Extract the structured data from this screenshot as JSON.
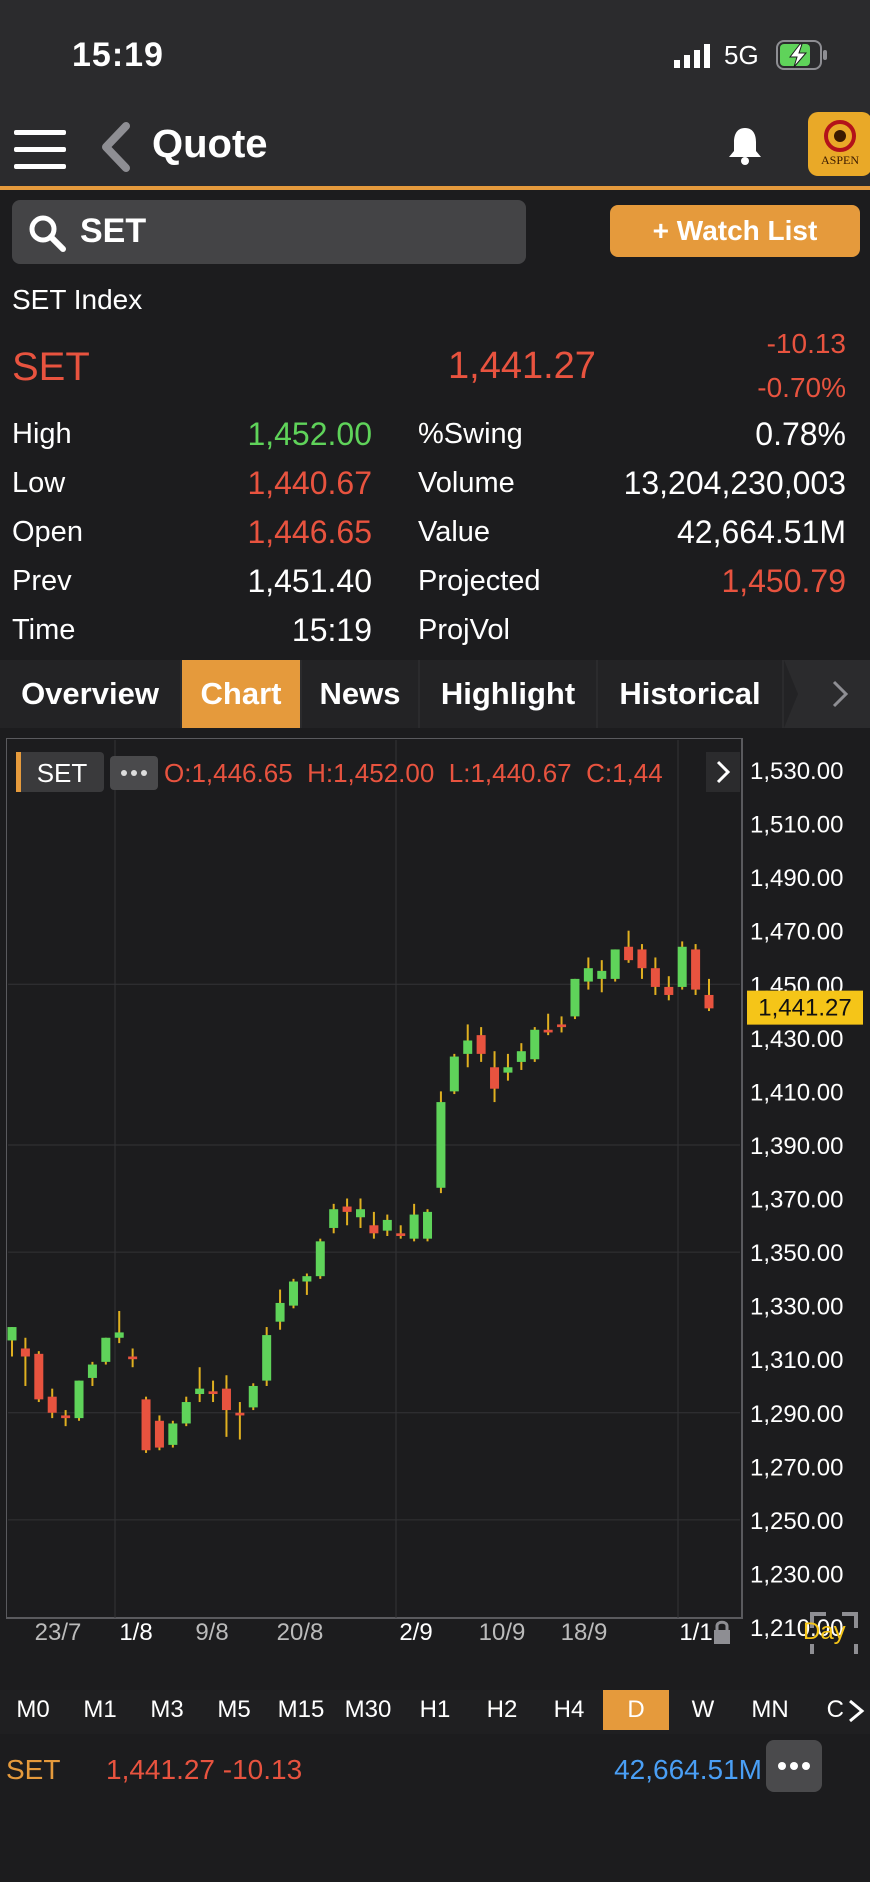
{
  "status": {
    "time": "15:19",
    "network": "5G"
  },
  "nav": {
    "title": "Quote",
    "logo_text": "ASPEN"
  },
  "search": {
    "value": "SET"
  },
  "watch_button": "+ Watch List",
  "quote": {
    "index_name": "SET Index",
    "symbol": "SET",
    "last": "1,441.27",
    "change": "-10.13",
    "change_pct": "-0.70%",
    "left_stats": [
      {
        "label": "High",
        "value": "1,452.00",
        "color": "#5fd35a"
      },
      {
        "label": "Low",
        "value": "1,440.67",
        "color": "#e8533f"
      },
      {
        "label": "Open",
        "value": "1,446.65",
        "color": "#e8533f"
      },
      {
        "label": "Prev",
        "value": "1,451.40",
        "color": "#ffffff"
      },
      {
        "label": "Time",
        "value": "15:19",
        "color": "#ffffff"
      }
    ],
    "right_stats": [
      {
        "label": "%Swing",
        "value": "0.78%",
        "color": "#ffffff"
      },
      {
        "label": "Volume",
        "value": "13,204,230,003",
        "color": "#ffffff"
      },
      {
        "label": "Value",
        "value": "42,664.51M",
        "color": "#ffffff"
      },
      {
        "label": "Projected",
        "value": "1,450.79",
        "color": "#e8533f"
      },
      {
        "label": "ProjVol",
        "value": "",
        "color": "#ffffff"
      }
    ]
  },
  "tabs": [
    "Overview",
    "Chart",
    "News",
    "Highlight",
    "Historical"
  ],
  "active_tab": "Chart",
  "chart_header": {
    "symbol": "SET",
    "ohlc_text": "O:1,446.65  H:1,452.00  L:1,440.67  C:1,44"
  },
  "timeframes": [
    "M0",
    "M1",
    "M3",
    "M5",
    "M15",
    "M30",
    "H1",
    "H2",
    "H4",
    "D",
    "W",
    "MN",
    "C"
  ],
  "active_timeframe": "D",
  "footer": {
    "symbol": "SET",
    "price_change": "1,441.27 -10.13",
    "value": "42,664.51M"
  },
  "colors": {
    "up": "#5fd35a",
    "down": "#e8533f",
    "accent": "#e59a3c",
    "last_badge": "#f5c518",
    "value_blue": "#4a9ff5"
  },
  "chart_data": {
    "type": "candlestick",
    "y_ticks": [
      1530,
      1510,
      1490,
      1470,
      1450,
      1430,
      1410,
      1390,
      1370,
      1350,
      1330,
      1310,
      1290,
      1270,
      1250,
      1230,
      1210
    ],
    "x_labels": [
      "23/7",
      "1/8",
      "9/8",
      "20/8",
      "2/9",
      "10/9",
      "18/9",
      "1/1"
    ],
    "corner_label": "Day",
    "last_price": 1441.27,
    "last_label": "1,441.27",
    "ylim": [
      1205,
      1535
    ],
    "candles": [
      {
        "o": 1317,
        "h": 1322,
        "l": 1311,
        "c": 1322
      },
      {
        "o": 1314,
        "h": 1318,
        "l": 1300,
        "c": 1311
      },
      {
        "o": 1312,
        "h": 1313,
        "l": 1294,
        "c": 1295
      },
      {
        "o": 1296,
        "h": 1299,
        "l": 1288,
        "c": 1290
      },
      {
        "o": 1289,
        "h": 1291,
        "l": 1285,
        "c": 1288
      },
      {
        "o": 1288,
        "h": 1302,
        "l": 1287,
        "c": 1302
      },
      {
        "o": 1303,
        "h": 1309,
        "l": 1300,
        "c": 1308
      },
      {
        "o": 1309,
        "h": 1318,
        "l": 1308,
        "c": 1318
      },
      {
        "o": 1318,
        "h": 1328,
        "l": 1316,
        "c": 1320
      },
      {
        "o": 1311,
        "h": 1314,
        "l": 1307,
        "c": 1310
      },
      {
        "o": 1295,
        "h": 1296,
        "l": 1275,
        "c": 1276
      },
      {
        "o": 1287,
        "h": 1289,
        "l": 1276,
        "c": 1277
      },
      {
        "o": 1278,
        "h": 1287,
        "l": 1277,
        "c": 1286
      },
      {
        "o": 1286,
        "h": 1296,
        "l": 1285,
        "c": 1294
      },
      {
        "o": 1297,
        "h": 1307,
        "l": 1294,
        "c": 1299
      },
      {
        "o": 1298,
        "h": 1302,
        "l": 1294,
        "c": 1297
      },
      {
        "o": 1299,
        "h": 1304,
        "l": 1281,
        "c": 1291
      },
      {
        "o": 1290,
        "h": 1294,
        "l": 1280,
        "c": 1289
      },
      {
        "o": 1292,
        "h": 1301,
        "l": 1291,
        "c": 1300
      },
      {
        "o": 1302,
        "h": 1322,
        "l": 1300,
        "c": 1319
      },
      {
        "o": 1324,
        "h": 1336,
        "l": 1321,
        "c": 1331
      },
      {
        "o": 1330,
        "h": 1340,
        "l": 1329,
        "c": 1339
      },
      {
        "o": 1339,
        "h": 1342,
        "l": 1334,
        "c": 1341
      },
      {
        "o": 1341,
        "h": 1355,
        "l": 1340,
        "c": 1354
      },
      {
        "o": 1359,
        "h": 1368,
        "l": 1357,
        "c": 1366
      },
      {
        "o": 1367,
        "h": 1370,
        "l": 1360,
        "c": 1365
      },
      {
        "o": 1363,
        "h": 1370,
        "l": 1359,
        "c": 1366
      },
      {
        "o": 1360,
        "h": 1365,
        "l": 1355,
        "c": 1357
      },
      {
        "o": 1358,
        "h": 1364,
        "l": 1356,
        "c": 1362
      },
      {
        "o": 1357,
        "h": 1360,
        "l": 1355,
        "c": 1356
      },
      {
        "o": 1355,
        "h": 1368,
        "l": 1354,
        "c": 1364
      },
      {
        "o": 1355,
        "h": 1366,
        "l": 1354,
        "c": 1365
      },
      {
        "o": 1374,
        "h": 1410,
        "l": 1372,
        "c": 1406
      },
      {
        "o": 1410,
        "h": 1424,
        "l": 1409,
        "c": 1423
      },
      {
        "o": 1424,
        "h": 1435,
        "l": 1419,
        "c": 1429
      },
      {
        "o": 1431,
        "h": 1434,
        "l": 1421,
        "c": 1424
      },
      {
        "o": 1419,
        "h": 1425,
        "l": 1406,
        "c": 1411
      },
      {
        "o": 1417,
        "h": 1424,
        "l": 1414,
        "c": 1419
      },
      {
        "o": 1421,
        "h": 1428,
        "l": 1418,
        "c": 1425
      },
      {
        "o": 1422,
        "h": 1434,
        "l": 1421,
        "c": 1433
      },
      {
        "o": 1433,
        "h": 1439,
        "l": 1431,
        "c": 1432
      },
      {
        "o": 1435,
        "h": 1438,
        "l": 1432,
        "c": 1434
      },
      {
        "o": 1438,
        "h": 1452,
        "l": 1437,
        "c": 1452
      },
      {
        "o": 1451,
        "h": 1460,
        "l": 1448,
        "c": 1456
      },
      {
        "o": 1452,
        "h": 1459,
        "l": 1447,
        "c": 1455
      },
      {
        "o": 1452,
        "h": 1463,
        "l": 1451,
        "c": 1463
      },
      {
        "o": 1464,
        "h": 1470,
        "l": 1458,
        "c": 1459
      },
      {
        "o": 1463,
        "h": 1465,
        "l": 1452,
        "c": 1456
      },
      {
        "o": 1456,
        "h": 1460,
        "l": 1446,
        "c": 1449
      },
      {
        "o": 1449,
        "h": 1453,
        "l": 1444,
        "c": 1446
      },
      {
        "o": 1449,
        "h": 1466,
        "l": 1448,
        "c": 1464
      },
      {
        "o": 1463,
        "h": 1465,
        "l": 1446,
        "c": 1448
      },
      {
        "o": 1446,
        "h": 1452,
        "l": 1440,
        "c": 1441
      }
    ]
  }
}
